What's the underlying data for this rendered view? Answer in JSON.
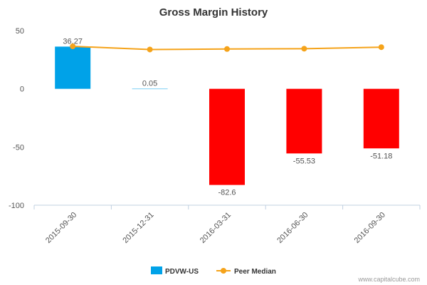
{
  "chart_data": {
    "type": "bar",
    "title": "Gross Margin History",
    "xlabel": "",
    "ylabel": "",
    "categories": [
      "2015-09-30",
      "2015-12-31",
      "2016-03-31",
      "2016-06-30",
      "2016-09-30"
    ],
    "ylim": [
      -100,
      50
    ],
    "yticks": [
      50,
      0,
      -50,
      -100
    ],
    "series": [
      {
        "name": "PDVW-US",
        "type": "bar",
        "values": [
          36.27,
          0.05,
          -82.6,
          -55.53,
          -51.18
        ],
        "labels": [
          "36.27",
          "0.05",
          "-82.6",
          "-55.53",
          "-51.18"
        ],
        "color_positive": "#00a2e8",
        "color_negative": "#ff0000"
      },
      {
        "name": "Peer Median",
        "type": "line",
        "values": [
          36.5,
          33.8,
          34.2,
          34.5,
          35.8
        ],
        "color": "#f5a31a"
      }
    ],
    "legend": "bottom-center",
    "grid": false
  },
  "credit": "www.capitalcube.com"
}
